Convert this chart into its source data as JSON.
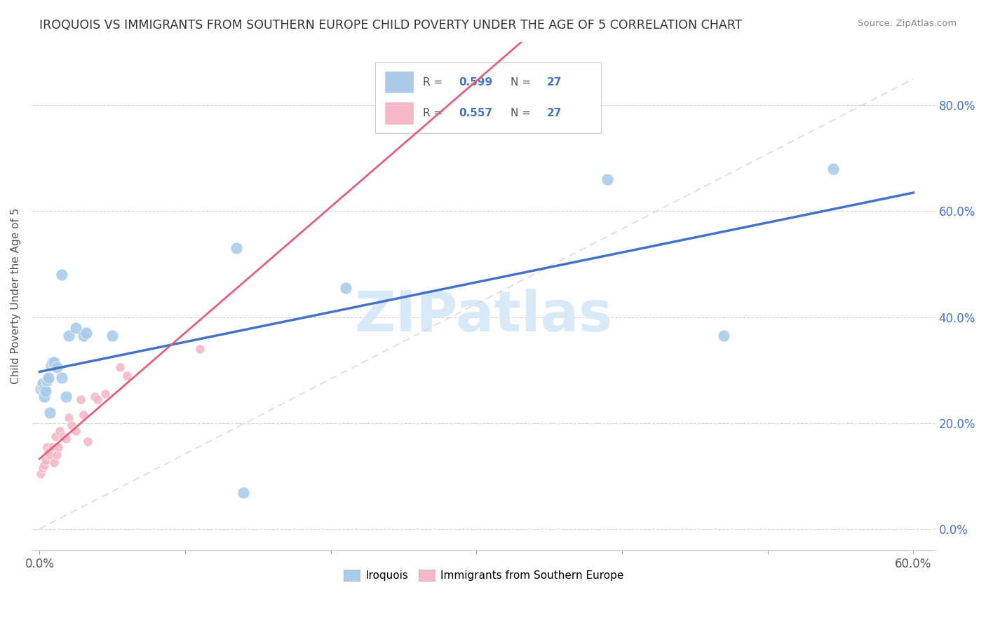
{
  "title": "IROQUOIS VS IMMIGRANTS FROM SOUTHERN EUROPE CHILD POVERTY UNDER THE AGE OF 5 CORRELATION CHART",
  "source": "Source: ZipAtlas.com",
  "ylabel": "Child Poverty Under the Age of 5",
  "xlim": [
    -0.005,
    0.615
  ],
  "ylim": [
    -0.04,
    0.92
  ],
  "xtick_positions": [
    0.0,
    0.1,
    0.2,
    0.3,
    0.4,
    0.5,
    0.6
  ],
  "ytick_positions": [
    0.0,
    0.2,
    0.4,
    0.6,
    0.8
  ],
  "x_label_ends": [
    "0.0%",
    "60.0%"
  ],
  "ytick_labels": [
    "0.0%",
    "20.0%",
    "40.0%",
    "60.0%",
    "80.0%"
  ],
  "legend_labels": [
    "Iroquois",
    "Immigrants from Southern Europe"
  ],
  "r_iroquois": "0.599",
  "n_iroquois": "27",
  "r_immigrants": "0.557",
  "n_immigrants": "27",
  "blue_scatter_color": "#aacce8",
  "blue_line_color": "#4472c4",
  "pink_scatter_color": "#f4b8c8",
  "pink_line_color": "#e06080",
  "pink_dash_color": "#e8b0b8",
  "ytick_color": "#4472c4",
  "watermark_text": "ZIPatlas",
  "watermark_color": "#d8eaf8",
  "iroquois_x": [
    0.001,
    0.002,
    0.002,
    0.003,
    0.003,
    0.004,
    0.005,
    0.006,
    0.007,
    0.008,
    0.009,
    0.01,
    0.012,
    0.015,
    0.015,
    0.018,
    0.02,
    0.025,
    0.03,
    0.032,
    0.05,
    0.135,
    0.21,
    0.39,
    0.47,
    0.545,
    0.14
  ],
  "iroquois_y": [
    0.265,
    0.27,
    0.275,
    0.25,
    0.265,
    0.26,
    0.28,
    0.285,
    0.22,
    0.31,
    0.315,
    0.315,
    0.305,
    0.285,
    0.48,
    0.25,
    0.365,
    0.38,
    0.365,
    0.37,
    0.365,
    0.53,
    0.455,
    0.66,
    0.365,
    0.68,
    0.068
  ],
  "immigrants_x": [
    0.001,
    0.002,
    0.003,
    0.004,
    0.005,
    0.006,
    0.007,
    0.009,
    0.01,
    0.011,
    0.012,
    0.013,
    0.014,
    0.016,
    0.018,
    0.02,
    0.022,
    0.025,
    0.028,
    0.03,
    0.033,
    0.038,
    0.04,
    0.045,
    0.055,
    0.06,
    0.11
  ],
  "immigrants_y": [
    0.105,
    0.115,
    0.12,
    0.13,
    0.155,
    0.145,
    0.14,
    0.155,
    0.125,
    0.175,
    0.14,
    0.155,
    0.185,
    0.175,
    0.17,
    0.21,
    0.195,
    0.185,
    0.245,
    0.215,
    0.165,
    0.25,
    0.245,
    0.255,
    0.305,
    0.29,
    0.34
  ]
}
